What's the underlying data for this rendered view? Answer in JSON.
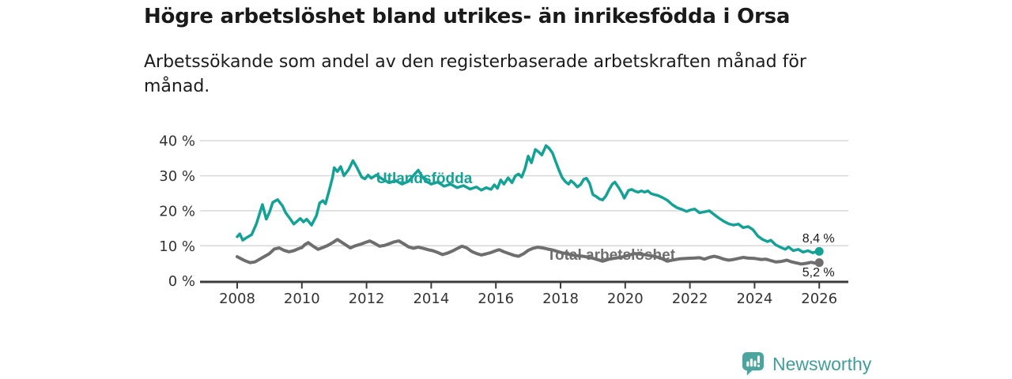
{
  "branding": {
    "name": "Newsworthy",
    "icon": "bar-chart-speech-bubble-icon",
    "icon_color": "#4ba49e",
    "text_color": "#3f9e99"
  },
  "colors": {
    "title_text": "#1a1a1a",
    "tick_text": "#333333",
    "grid_line": "#d8d8d8",
    "axis_line": "#3c3c3c",
    "end_label_text": "#1a1a1a"
  },
  "chart_data": {
    "type": "line",
    "title": "Högre arbetslöshet bland utrikes- än inrikesfödda i Orsa",
    "subtitle": "Arbetssökande som andel av den registerbaserade arbetskraften månad för månad.",
    "grid": true,
    "legend_position": "inline-labels",
    "xlim": [
      2007.85,
      2026.9
    ],
    "ylim": [
      0,
      40
    ],
    "y_axis": {
      "ticks": [
        {
          "value": 0,
          "label": "0 %"
        },
        {
          "value": 10,
          "label": "10 %"
        },
        {
          "value": 20,
          "label": "20 %"
        },
        {
          "value": 30,
          "label": "30 %"
        },
        {
          "value": 40,
          "label": "40 %"
        }
      ]
    },
    "x_axis": {
      "ticks": [
        {
          "value": 2008,
          "label": "2008"
        },
        {
          "value": 2010,
          "label": "2010"
        },
        {
          "value": 2012,
          "label": "2012"
        },
        {
          "value": 2014,
          "label": "2014"
        },
        {
          "value": 2016,
          "label": "2016"
        },
        {
          "value": 2018,
          "label": "2018"
        },
        {
          "value": 2020,
          "label": "2020"
        },
        {
          "value": 2022,
          "label": "2022"
        },
        {
          "value": 2024,
          "label": "2024"
        },
        {
          "value": 2026,
          "label": "2026"
        }
      ]
    },
    "series": [
      {
        "name": "Utlandsfödda",
        "color": "#14a296",
        "end_label": "8,4 %",
        "end_value": 8.4,
        "label_pos": {
          "year": 2012.3,
          "value": 27.9
        },
        "points": [
          [
            2008.0,
            12.6
          ],
          [
            2008.08,
            13.4
          ],
          [
            2008.17,
            11.6
          ],
          [
            2008.3,
            12.4
          ],
          [
            2008.45,
            13.2
          ],
          [
            2008.6,
            16.4
          ],
          [
            2008.7,
            19.4
          ],
          [
            2008.78,
            21.8
          ],
          [
            2008.9,
            17.6
          ],
          [
            2009.0,
            19.6
          ],
          [
            2009.1,
            22.4
          ],
          [
            2009.25,
            23.2
          ],
          [
            2009.4,
            21.4
          ],
          [
            2009.5,
            19.4
          ],
          [
            2009.6,
            18.2
          ],
          [
            2009.75,
            16.2
          ],
          [
            2009.85,
            17.0
          ],
          [
            2009.95,
            17.8
          ],
          [
            2010.05,
            16.8
          ],
          [
            2010.15,
            17.6
          ],
          [
            2010.3,
            15.9
          ],
          [
            2010.45,
            18.6
          ],
          [
            2010.55,
            22.2
          ],
          [
            2010.65,
            22.9
          ],
          [
            2010.73,
            22.0
          ],
          [
            2010.85,
            26.0
          ],
          [
            2010.95,
            29.6
          ],
          [
            2011.0,
            32.3
          ],
          [
            2011.1,
            31.2
          ],
          [
            2011.2,
            32.6
          ],
          [
            2011.3,
            30.0
          ],
          [
            2011.45,
            31.8
          ],
          [
            2011.58,
            34.3
          ],
          [
            2011.7,
            32.4
          ],
          [
            2011.85,
            29.6
          ],
          [
            2011.95,
            29.1
          ],
          [
            2012.05,
            30.2
          ],
          [
            2012.15,
            29.3
          ],
          [
            2012.3,
            30.2
          ],
          [
            2012.5,
            29.0
          ],
          [
            2012.7,
            28.0
          ],
          [
            2012.9,
            28.6
          ],
          [
            2013.1,
            27.6
          ],
          [
            2013.3,
            28.4
          ],
          [
            2013.5,
            30.6
          ],
          [
            2013.6,
            31.6
          ],
          [
            2013.72,
            29.8
          ],
          [
            2013.85,
            28.4
          ],
          [
            2014.0,
            27.6
          ],
          [
            2014.2,
            28.2
          ],
          [
            2014.4,
            27.0
          ],
          [
            2014.6,
            27.6
          ],
          [
            2014.8,
            26.6
          ],
          [
            2015.0,
            27.2
          ],
          [
            2015.2,
            26.2
          ],
          [
            2015.4,
            26.8
          ],
          [
            2015.55,
            25.9
          ],
          [
            2015.7,
            26.6
          ],
          [
            2015.85,
            26.1
          ],
          [
            2015.95,
            27.4
          ],
          [
            2016.05,
            26.4
          ],
          [
            2016.15,
            28.8
          ],
          [
            2016.25,
            27.6
          ],
          [
            2016.38,
            29.4
          ],
          [
            2016.5,
            28.0
          ],
          [
            2016.6,
            29.9
          ],
          [
            2016.7,
            30.5
          ],
          [
            2016.8,
            29.6
          ],
          [
            2016.9,
            32.0
          ],
          [
            2017.0,
            35.6
          ],
          [
            2017.1,
            33.7
          ],
          [
            2017.22,
            37.5
          ],
          [
            2017.32,
            36.8
          ],
          [
            2017.42,
            35.9
          ],
          [
            2017.55,
            38.6
          ],
          [
            2017.65,
            37.8
          ],
          [
            2017.75,
            36.5
          ],
          [
            2017.85,
            34.0
          ],
          [
            2017.95,
            31.6
          ],
          [
            2018.05,
            29.5
          ],
          [
            2018.15,
            28.3
          ],
          [
            2018.25,
            27.6
          ],
          [
            2018.32,
            28.6
          ],
          [
            2018.42,
            27.8
          ],
          [
            2018.52,
            26.8
          ],
          [
            2018.62,
            27.5
          ],
          [
            2018.72,
            29.0
          ],
          [
            2018.8,
            29.3
          ],
          [
            2018.9,
            27.8
          ],
          [
            2019.0,
            24.6
          ],
          [
            2019.1,
            24.1
          ],
          [
            2019.2,
            23.4
          ],
          [
            2019.3,
            23.1
          ],
          [
            2019.4,
            24.2
          ],
          [
            2019.5,
            26.0
          ],
          [
            2019.6,
            27.6
          ],
          [
            2019.68,
            28.2
          ],
          [
            2019.8,
            26.6
          ],
          [
            2019.9,
            25.0
          ],
          [
            2019.97,
            23.6
          ],
          [
            2020.1,
            25.8
          ],
          [
            2020.2,
            26.1
          ],
          [
            2020.3,
            25.6
          ],
          [
            2020.4,
            25.3
          ],
          [
            2020.5,
            25.7
          ],
          [
            2020.6,
            25.3
          ],
          [
            2020.7,
            25.7
          ],
          [
            2020.8,
            24.9
          ],
          [
            2020.9,
            24.6
          ],
          [
            2021.0,
            24.4
          ],
          [
            2021.15,
            23.8
          ],
          [
            2021.3,
            23.0
          ],
          [
            2021.45,
            21.8
          ],
          [
            2021.6,
            20.9
          ],
          [
            2021.75,
            20.4
          ],
          [
            2021.9,
            19.8
          ],
          [
            2022.0,
            20.2
          ],
          [
            2022.15,
            20.5
          ],
          [
            2022.3,
            19.4
          ],
          [
            2022.45,
            19.7
          ],
          [
            2022.6,
            20.0
          ],
          [
            2022.75,
            18.9
          ],
          [
            2022.9,
            17.9
          ],
          [
            2023.05,
            17.0
          ],
          [
            2023.2,
            16.3
          ],
          [
            2023.35,
            15.9
          ],
          [
            2023.5,
            16.2
          ],
          [
            2023.65,
            15.2
          ],
          [
            2023.8,
            15.5
          ],
          [
            2023.95,
            14.6
          ],
          [
            2024.1,
            12.8
          ],
          [
            2024.25,
            11.8
          ],
          [
            2024.4,
            11.2
          ],
          [
            2024.5,
            11.6
          ],
          [
            2024.65,
            10.3
          ],
          [
            2024.8,
            9.6
          ],
          [
            2024.95,
            9.0
          ],
          [
            2025.05,
            9.7
          ],
          [
            2025.2,
            8.6
          ],
          [
            2025.35,
            9.0
          ],
          [
            2025.5,
            8.2
          ],
          [
            2025.65,
            8.6
          ],
          [
            2025.8,
            8.0
          ],
          [
            2025.9,
            8.3
          ],
          [
            2026.0,
            8.4
          ]
        ]
      },
      {
        "name": "Total arbetslöshet",
        "color": "#6e6e6e",
        "end_label": "5,2 %",
        "end_value": 5.2,
        "label_pos": {
          "year": 2017.58,
          "value": 6.0
        },
        "points": [
          [
            2008.0,
            6.9
          ],
          [
            2008.1,
            6.4
          ],
          [
            2008.25,
            5.7
          ],
          [
            2008.4,
            5.2
          ],
          [
            2008.55,
            5.4
          ],
          [
            2008.7,
            6.2
          ],
          [
            2008.85,
            7.0
          ],
          [
            2009.0,
            7.8
          ],
          [
            2009.15,
            9.1
          ],
          [
            2009.3,
            9.4
          ],
          [
            2009.45,
            8.7
          ],
          [
            2009.6,
            8.3
          ],
          [
            2009.75,
            8.6
          ],
          [
            2009.9,
            9.2
          ],
          [
            2010.0,
            9.5
          ],
          [
            2010.1,
            10.4
          ],
          [
            2010.2,
            10.9
          ],
          [
            2010.35,
            9.9
          ],
          [
            2010.5,
            9.0
          ],
          [
            2010.65,
            9.5
          ],
          [
            2010.8,
            10.1
          ],
          [
            2010.95,
            10.9
          ],
          [
            2011.1,
            11.8
          ],
          [
            2011.25,
            10.9
          ],
          [
            2011.4,
            10.0
          ],
          [
            2011.5,
            9.4
          ],
          [
            2011.65,
            10.0
          ],
          [
            2011.8,
            10.4
          ],
          [
            2011.95,
            10.9
          ],
          [
            2012.1,
            11.4
          ],
          [
            2012.25,
            10.7
          ],
          [
            2012.4,
            9.9
          ],
          [
            2012.55,
            10.1
          ],
          [
            2012.7,
            10.6
          ],
          [
            2012.85,
            11.1
          ],
          [
            2013.0,
            11.4
          ],
          [
            2013.15,
            10.6
          ],
          [
            2013.3,
            9.7
          ],
          [
            2013.45,
            9.3
          ],
          [
            2013.6,
            9.6
          ],
          [
            2013.75,
            9.3
          ],
          [
            2013.9,
            8.9
          ],
          [
            2014.05,
            8.6
          ],
          [
            2014.2,
            8.1
          ],
          [
            2014.35,
            7.5
          ],
          [
            2014.5,
            7.9
          ],
          [
            2014.65,
            8.5
          ],
          [
            2014.8,
            9.2
          ],
          [
            2014.95,
            9.9
          ],
          [
            2015.1,
            9.4
          ],
          [
            2015.25,
            8.4
          ],
          [
            2015.4,
            7.8
          ],
          [
            2015.55,
            7.4
          ],
          [
            2015.7,
            7.7
          ],
          [
            2015.85,
            8.1
          ],
          [
            2016.0,
            8.6
          ],
          [
            2016.1,
            8.9
          ],
          [
            2016.25,
            8.3
          ],
          [
            2016.4,
            7.8
          ],
          [
            2016.55,
            7.3
          ],
          [
            2016.7,
            7.0
          ],
          [
            2016.85,
            7.7
          ],
          [
            2017.0,
            8.7
          ],
          [
            2017.15,
            9.3
          ],
          [
            2017.3,
            9.6
          ],
          [
            2017.45,
            9.4
          ],
          [
            2017.6,
            9.1
          ],
          [
            2017.75,
            8.8
          ],
          [
            2017.9,
            8.4
          ],
          [
            2018.05,
            8.0
          ],
          [
            2018.2,
            7.7
          ],
          [
            2018.35,
            7.4
          ],
          [
            2018.5,
            7.2
          ],
          [
            2018.7,
            7.0
          ],
          [
            2018.9,
            6.7
          ],
          [
            2019.1,
            6.2
          ],
          [
            2019.3,
            5.6
          ],
          [
            2019.5,
            6.2
          ],
          [
            2019.7,
            6.5
          ],
          [
            2019.9,
            6.8
          ],
          [
            2020.1,
            7.3
          ],
          [
            2020.3,
            7.8
          ],
          [
            2020.5,
            7.6
          ],
          [
            2020.7,
            7.3
          ],
          [
            2020.9,
            7.0
          ],
          [
            2021.1,
            6.5
          ],
          [
            2021.3,
            5.6
          ],
          [
            2021.5,
            6.0
          ],
          [
            2021.7,
            6.3
          ],
          [
            2021.9,
            6.4
          ],
          [
            2022.1,
            6.5
          ],
          [
            2022.3,
            6.6
          ],
          [
            2022.45,
            6.2
          ],
          [
            2022.6,
            6.7
          ],
          [
            2022.75,
            7.0
          ],
          [
            2022.9,
            6.7
          ],
          [
            2023.05,
            6.2
          ],
          [
            2023.2,
            5.9
          ],
          [
            2023.35,
            6.1
          ],
          [
            2023.5,
            6.4
          ],
          [
            2023.65,
            6.7
          ],
          [
            2023.8,
            6.5
          ],
          [
            2024.0,
            6.4
          ],
          [
            2024.2,
            6.1
          ],
          [
            2024.35,
            6.2
          ],
          [
            2024.5,
            5.8
          ],
          [
            2024.65,
            5.4
          ],
          [
            2024.8,
            5.5
          ],
          [
            2025.0,
            5.9
          ],
          [
            2025.15,
            5.4
          ],
          [
            2025.3,
            5.1
          ],
          [
            2025.45,
            4.8
          ],
          [
            2025.6,
            5.0
          ],
          [
            2025.75,
            5.3
          ],
          [
            2025.9,
            5.0
          ],
          [
            2026.0,
            5.2
          ]
        ]
      }
    ]
  }
}
